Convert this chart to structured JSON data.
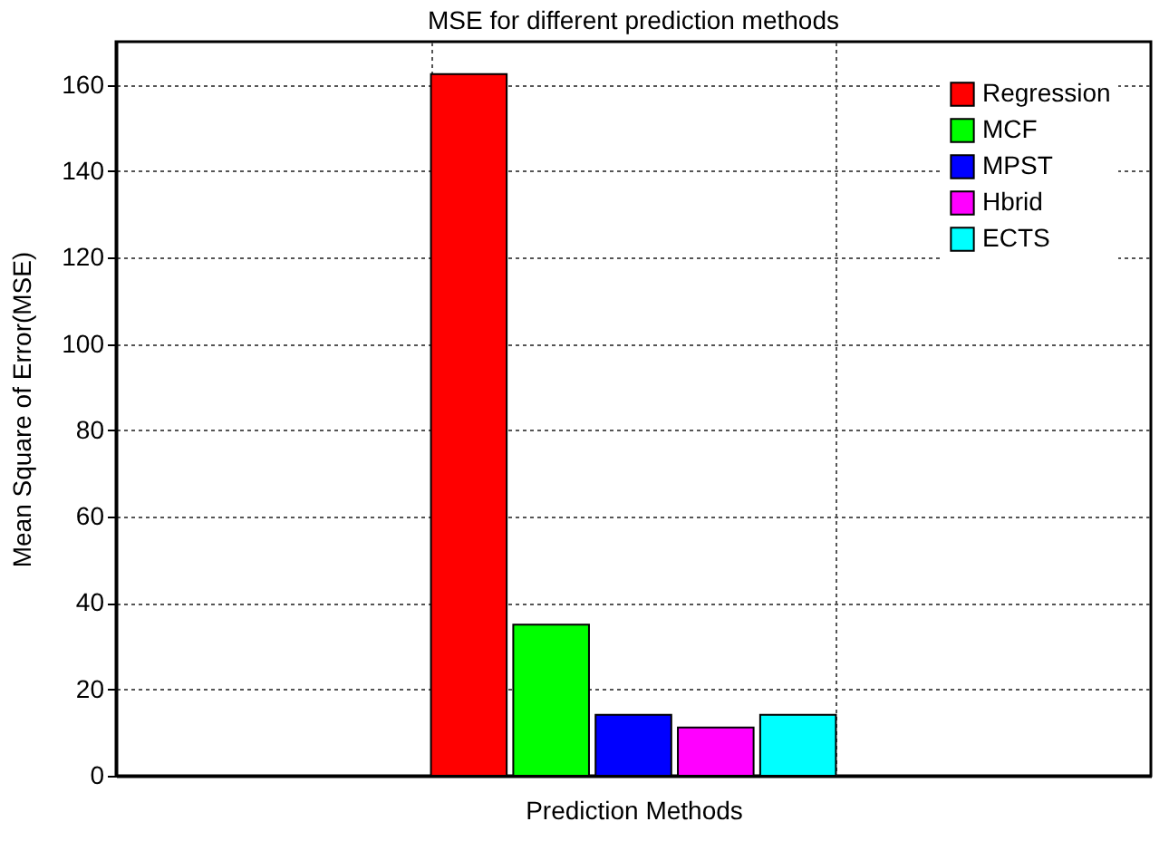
{
  "chart_data": {
    "type": "bar",
    "title": "MSE for different prediction methods",
    "xlabel": "Prediction Methods",
    "ylabel": "Mean Square of Error(MSE)",
    "categories": [
      null
    ],
    "ylim": [
      0,
      170
    ],
    "yticks": [
      0,
      20,
      40,
      60,
      80,
      100,
      120,
      140,
      160
    ],
    "series": [
      {
        "name": "Regression",
        "color": "#ff0000",
        "values": [
          162.5
        ]
      },
      {
        "name": "MCF",
        "color": "#00ff00",
        "values": [
          35
        ]
      },
      {
        "name": "MPST",
        "color": "#0000ff",
        "values": [
          14.1
        ]
      },
      {
        "name": "Hbrid",
        "color": "#ff00ff",
        "values": [
          11.2
        ]
      },
      {
        "name": "ECTS",
        "color": "#00ffff",
        "values": [
          14.1
        ]
      }
    ],
    "grid": true,
    "legend": "top right",
    "tick_labels": "y"
  }
}
